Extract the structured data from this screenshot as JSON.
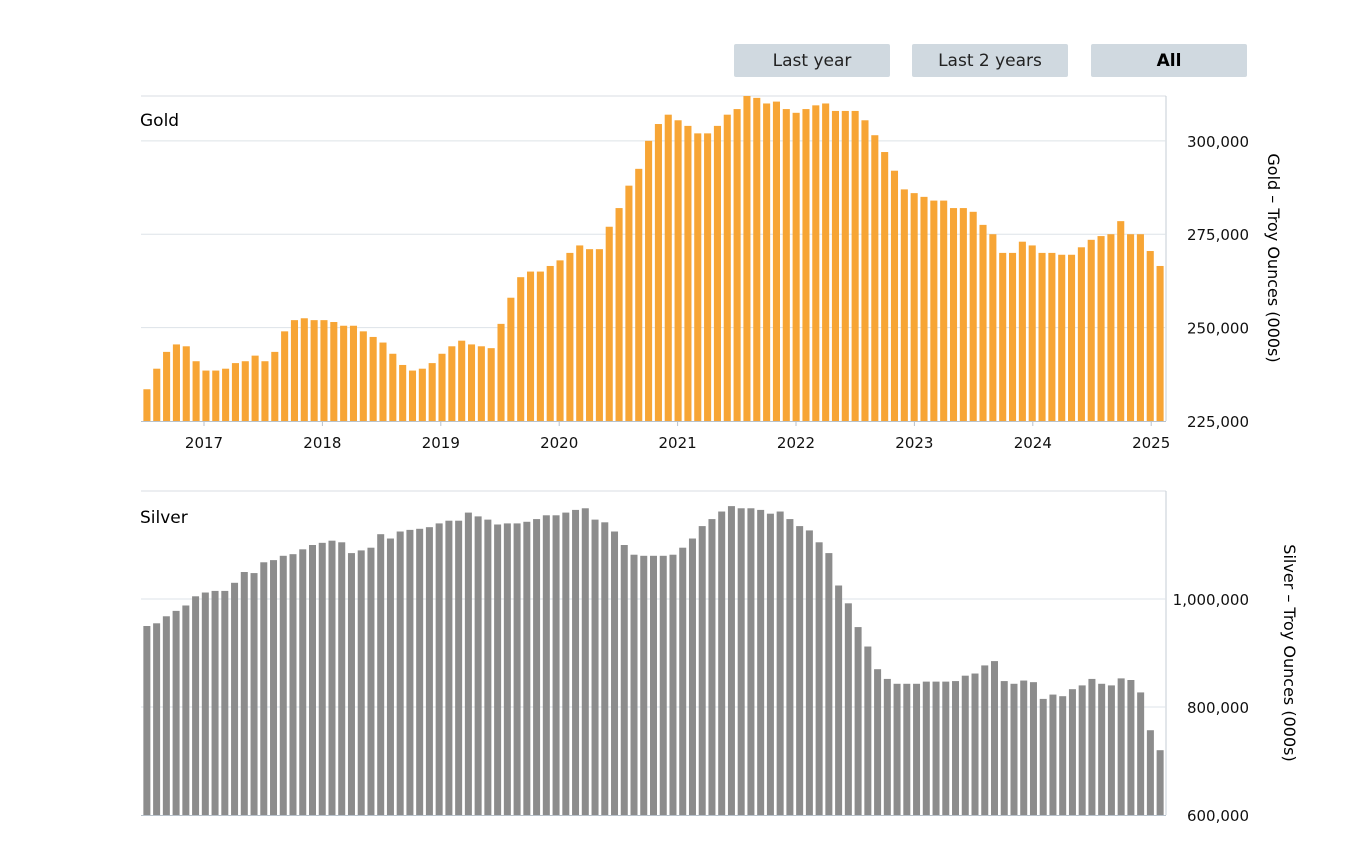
{
  "range_buttons": [
    {
      "label": "Last year",
      "active": false
    },
    {
      "label": "Last 2 years",
      "active": false
    },
    {
      "label": "All",
      "active": true
    }
  ],
  "chart_data": [
    {
      "type": "bar",
      "title": "Gold",
      "ylabel": "Gold – Troy Ounces (000s)",
      "ylim": [
        225000,
        312000
      ],
      "yticks": [
        225000,
        250000,
        275000,
        300000
      ],
      "ytick_labels": [
        "225,000",
        "250,000",
        "275,000",
        "300,000"
      ],
      "xticks": [
        "2017",
        "2018",
        "2019",
        "2020",
        "2021",
        "2022",
        "2023",
        "2024",
        "2025"
      ],
      "grid": true,
      "color": "#f7a535",
      "values": [
        233500,
        239000,
        243500,
        245500,
        245000,
        241000,
        238500,
        238500,
        239000,
        240500,
        241000,
        242500,
        241000,
        243500,
        249000,
        252000,
        252500,
        252000,
        252000,
        251500,
        250500,
        250500,
        249000,
        247500,
        246000,
        243000,
        240000,
        238500,
        239000,
        240500,
        243000,
        245000,
        246500,
        245500,
        245000,
        244500,
        251000,
        258000,
        263500,
        265000,
        265000,
        266500,
        268000,
        270000,
        272000,
        271000,
        271000,
        277000,
        282000,
        288000,
        292500,
        300000,
        304500,
        307000,
        305500,
        304000,
        302000,
        302000,
        304000,
        307000,
        308500,
        312000,
        311500,
        310000,
        310500,
        308500,
        307500,
        308500,
        309500,
        310000,
        308000,
        308000,
        308000,
        305500,
        301500,
        297000,
        292000,
        287000,
        286000,
        285000,
        284000,
        284000,
        282000,
        282000,
        281000,
        277500,
        275000,
        270000,
        270000,
        273000,
        272000,
        270000,
        270000,
        269500,
        269500,
        271500,
        273500,
        274500,
        275000,
        278500,
        275000,
        275000,
        270500,
        266500
      ]
    },
    {
      "type": "bar",
      "title": "Silver",
      "ylabel": "Silver – Troy Ounces (000s)",
      "ylim": [
        600000,
        1200000
      ],
      "yticks": [
        600000,
        800000,
        1000000
      ],
      "ytick_labels": [
        "600,000",
        "800,000",
        "1,000,000"
      ],
      "grid": true,
      "color": "#8c8c8c",
      "values": [
        950000,
        955000,
        968000,
        978000,
        988000,
        1005000,
        1012000,
        1015000,
        1015000,
        1030000,
        1050000,
        1048000,
        1068000,
        1072000,
        1080000,
        1083000,
        1092000,
        1100000,
        1104000,
        1108000,
        1105000,
        1085000,
        1090000,
        1095000,
        1120000,
        1112000,
        1125000,
        1128000,
        1130000,
        1133000,
        1140000,
        1145000,
        1145000,
        1160000,
        1153000,
        1147000,
        1138000,
        1140000,
        1140000,
        1143000,
        1148000,
        1155000,
        1155000,
        1160000,
        1165000,
        1168000,
        1147000,
        1142000,
        1125000,
        1100000,
        1082000,
        1080000,
        1080000,
        1080000,
        1082000,
        1095000,
        1112000,
        1135000,
        1148000,
        1162000,
        1172000,
        1168000,
        1168000,
        1165000,
        1158000,
        1162000,
        1148000,
        1135000,
        1127000,
        1105000,
        1085000,
        1025000,
        992000,
        948000,
        912000,
        870000,
        852000,
        843000,
        843000,
        843000,
        847000,
        847000,
        847000,
        848000,
        858000,
        862000,
        877000,
        885000,
        848000,
        843000,
        849000,
        846000,
        815000,
        823000,
        820000,
        833000,
        840000,
        852000,
        843000,
        840000,
        853000,
        850000,
        827000,
        757000,
        720000
      ]
    }
  ]
}
